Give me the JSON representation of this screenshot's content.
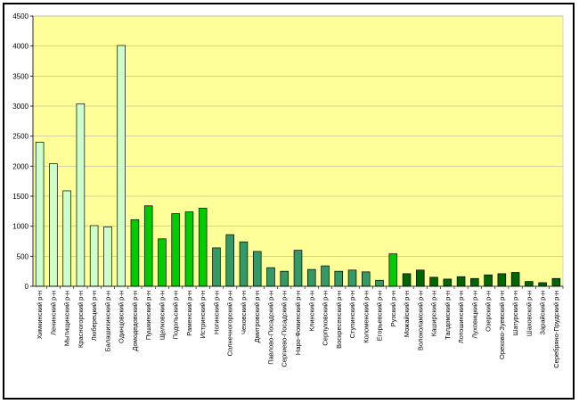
{
  "chart_data": {
    "type": "bar",
    "title": "",
    "xlabel": "",
    "ylabel": "",
    "ylim": [
      0,
      4500
    ],
    "yticks": [
      "0",
      "500",
      "1000",
      "1500",
      "2000",
      "2500",
      "3000",
      "3500",
      "4000",
      "4500"
    ],
    "grid": true,
    "legend": "none",
    "plot_background": "#ffff99",
    "categories": [
      "Химкинский р-н",
      "Ленинский р-н",
      "Мытищинский р-н",
      "Красногорский р-н",
      "Люберецкий р-н",
      "Балашихинский р-н",
      "Одинцовский р-н",
      "Домодедовский р-н",
      "Пушкинский р-н",
      "Щелковский р-н",
      "Подольский р-н",
      "Раменский р-н",
      "Истринский р-н",
      "Ногинский р-н",
      "Солнечногорский р-н",
      "Чеховский р-н",
      "Дмитровский р-н",
      "Павлово-Посадский р-н",
      "Сергиево-Посадский р-н",
      "Наро-Фоминский р-н",
      "Клинский р-н",
      "Серпуховский р-н",
      "Воскресенский р-н",
      "Ступинский р-н",
      "Коломенский р-н",
      "Егорьевский р-н",
      "Рузский р-н",
      "Можайский р-н",
      "Волоколамский р-н",
      "Каширский р-н",
      "Талдомский р-н",
      "Лотошинский р-н",
      "Луховицкий р-н",
      "Озерский р-н",
      "Орехово-Зуевский р-н",
      "Шатурский р-н",
      "Шаховской р-н",
      "Зарайский р-н",
      "Серебряно-Прудский р-н"
    ],
    "values": [
      2400,
      2040,
      1590,
      3040,
      1010,
      990,
      4010,
      1110,
      1340,
      790,
      1210,
      1240,
      1300,
      640,
      860,
      740,
      580,
      310,
      250,
      600,
      280,
      340,
      250,
      270,
      240,
      100,
      540,
      210,
      270,
      150,
      120,
      160,
      130,
      190,
      210,
      230,
      80,
      60,
      130
    ],
    "bar_colors": [
      "#ccffcc",
      "#ccffcc",
      "#ccffcc",
      "#ccffcc",
      "#ccffcc",
      "#ccffcc",
      "#ccffcc",
      "#00cc00",
      "#00cc00",
      "#00cc00",
      "#00cc00",
      "#00cc00",
      "#00cc00",
      "#339966",
      "#339966",
      "#339966",
      "#339966",
      "#339966",
      "#339966",
      "#339966",
      "#339966",
      "#339966",
      "#339966",
      "#339966",
      "#339966",
      "#339966",
      "#00cc00",
      "#006600",
      "#006600",
      "#006600",
      "#006600",
      "#006600",
      "#006600",
      "#006600",
      "#006600",
      "#006600",
      "#006600",
      "#006600",
      "#006600"
    ]
  }
}
